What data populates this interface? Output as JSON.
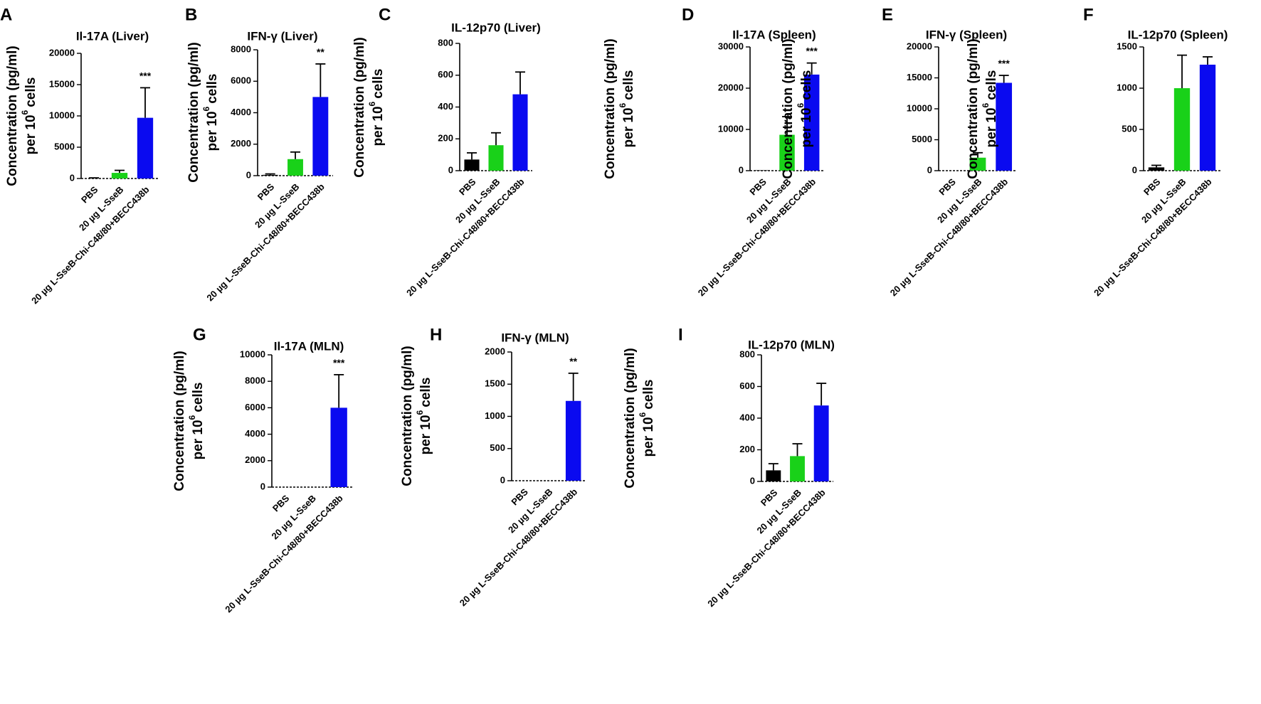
{
  "categories": [
    "PBS",
    "20 µg L-SseB",
    "20 µg L-SseB-Chi-C48/80+BECC438b"
  ],
  "colors": {
    "PBS": "#000000",
    "20 µg L-SseB": "#19d119",
    "20 µg L-SseB-Chi-C48/80+BECC438b": "#0a0af0"
  },
  "ylabel_main": "Concentration (pg/ml)",
  "ylabel_per": "per 10",
  "ylabel_exp": "6",
  "ylabel_cells": "cells",
  "chart_data": [
    {
      "panel": "A",
      "type": "bar",
      "title": "Il-17A (Liver)",
      "ylim": [
        0,
        20000
      ],
      "ticks": [
        "0",
        "5000",
        "10000",
        "15000",
        "20000"
      ],
      "tick_values": [
        0,
        5000,
        10000,
        15000,
        20000
      ],
      "values": [
        50,
        900,
        9700
      ],
      "errors": [
        50,
        400,
        4800
      ],
      "significance": [
        "",
        "",
        "***"
      ]
    },
    {
      "panel": "B",
      "type": "bar",
      "title": "IFN-γ (Liver)",
      "ylim": [
        0,
        8000
      ],
      "ticks": [
        "0",
        "2000",
        "4000",
        "6000",
        "8000"
      ],
      "tick_values": [
        0,
        2000,
        4000,
        6000,
        8000
      ],
      "values": [
        50,
        1050,
        5000
      ],
      "errors": [
        60,
        450,
        2100
      ],
      "significance": [
        "",
        "",
        "**"
      ]
    },
    {
      "panel": "C",
      "type": "bar",
      "title": "IL-12p70 (Liver)",
      "ylim": [
        0,
        800
      ],
      "ticks": [
        "0",
        "200",
        "400",
        "600",
        "800"
      ],
      "tick_values": [
        0,
        200,
        400,
        600,
        800
      ],
      "values": [
        70,
        160,
        480
      ],
      "errors": [
        42,
        78,
        140
      ],
      "significance": [
        "",
        "",
        ""
      ]
    },
    {
      "panel": "D",
      "type": "bar",
      "title": "Il-17A (Spleen)",
      "ylim": [
        0,
        30000
      ],
      "ticks": [
        "0",
        "10000",
        "20000",
        "30000"
      ],
      "tick_values": [
        0,
        10000,
        20000,
        30000
      ],
      "values": [
        100,
        8700,
        23300
      ],
      "errors": [
        0,
        4400,
        2800
      ],
      "significance": [
        "",
        "",
        "***"
      ]
    },
    {
      "panel": "E",
      "type": "bar",
      "title": "IFN-γ (Spleen)",
      "ylim": [
        0,
        20000
      ],
      "ticks": [
        "0",
        "5000",
        "10000",
        "15000",
        "20000"
      ],
      "tick_values": [
        0,
        5000,
        10000,
        15000,
        20000
      ],
      "values": [
        50,
        2100,
        14200
      ],
      "errors": [
        0,
        800,
        1200
      ],
      "significance": [
        "",
        "",
        "***"
      ]
    },
    {
      "panel": "F",
      "type": "bar",
      "title": "IL-12p70 (Spleen)",
      "ylim": [
        0,
        1500
      ],
      "ticks": [
        "0",
        "500",
        "1000",
        "1500"
      ],
      "tick_values": [
        0,
        500,
        1000,
        1500
      ],
      "values": [
        40,
        1000,
        1285
      ],
      "errors": [
        25,
        400,
        95
      ],
      "significance": [
        "",
        "",
        ""
      ]
    },
    {
      "panel": "G",
      "type": "bar",
      "title": "Il-17A (MLN)",
      "ylim": [
        0,
        10000
      ],
      "ticks": [
        "0",
        "2000",
        "4000",
        "6000",
        "8000",
        "10000"
      ],
      "tick_values": [
        0,
        2000,
        4000,
        6000,
        8000,
        10000
      ],
      "values": [
        0,
        0,
        6000
      ],
      "errors": [
        0,
        0,
        2500
      ],
      "significance": [
        "",
        "",
        "***"
      ]
    },
    {
      "panel": "H",
      "type": "bar",
      "title": "IFN-γ (MLN)",
      "ylim": [
        0,
        2000
      ],
      "ticks": [
        "0",
        "500",
        "1000",
        "1500",
        "2000"
      ],
      "tick_values": [
        0,
        500,
        1000,
        1500,
        2000
      ],
      "values": [
        0,
        0,
        1240
      ],
      "errors": [
        0,
        0,
        430
      ],
      "significance": [
        "",
        "",
        "**"
      ]
    },
    {
      "panel": "I",
      "type": "bar",
      "title": "IL-12p70 (MLN)",
      "ylim": [
        0,
        800
      ],
      "ticks": [
        "0",
        "200",
        "400",
        "600",
        "800"
      ],
      "tick_values": [
        0,
        200,
        400,
        600,
        800
      ],
      "values": [
        70,
        160,
        480
      ],
      "errors": [
        42,
        78,
        140
      ],
      "significance": [
        "",
        "",
        ""
      ]
    }
  ]
}
